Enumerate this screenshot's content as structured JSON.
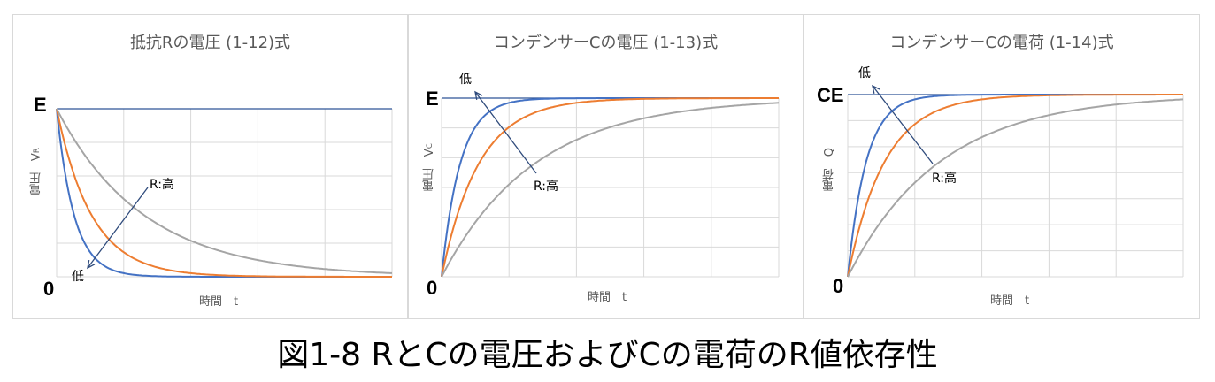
{
  "caption": "図1-8 RとCの電圧およびCの電荷のR値依存性",
  "chart_data": [
    {
      "type": "line",
      "title": "抵抗Rの電圧 (1-12)式",
      "xlabel": "時間　t",
      "ylabel": "電圧　V",
      "ylabel_sub": "R",
      "y_ticks": [
        "E",
        "0"
      ],
      "form": "decay",
      "reference_line": "E",
      "time_constants_relative": [
        1,
        2,
        5
      ],
      "series": [
        {
          "color": "#4472C4"
        },
        {
          "color": "#ED7D31"
        },
        {
          "color": "#A5A5A5"
        }
      ],
      "annotations": {
        "low": "低",
        "high": "R:高"
      },
      "grid": true
    },
    {
      "type": "line",
      "title": "コンデンサーCの電圧 (1-13)式",
      "xlabel": "時間　t",
      "ylabel": "電圧　V",
      "ylabel_sub": "C",
      "y_ticks": [
        "E",
        "0"
      ],
      "form": "rise",
      "reference_line": "E",
      "time_constants_relative": [
        1,
        2,
        5
      ],
      "series": [
        {
          "color": "#4472C4"
        },
        {
          "color": "#ED7D31"
        },
        {
          "color": "#A5A5A5"
        }
      ],
      "annotations": {
        "low": "低",
        "high": "R:高"
      },
      "grid": true
    },
    {
      "type": "line",
      "title": "コンデンサーCの電荷 (1-14)式",
      "xlabel": "時間　t",
      "ylabel": "電荷　Q",
      "ylabel_sub": "",
      "y_ticks": [
        "CE",
        "0"
      ],
      "form": "rise",
      "reference_line": "CE",
      "time_constants_relative": [
        1,
        2,
        5
      ],
      "series": [
        {
          "color": "#4472C4"
        },
        {
          "color": "#ED7D31"
        },
        {
          "color": "#A5A5A5"
        }
      ],
      "annotations": {
        "low": "低",
        "high": "R:高"
      },
      "grid": true
    }
  ]
}
